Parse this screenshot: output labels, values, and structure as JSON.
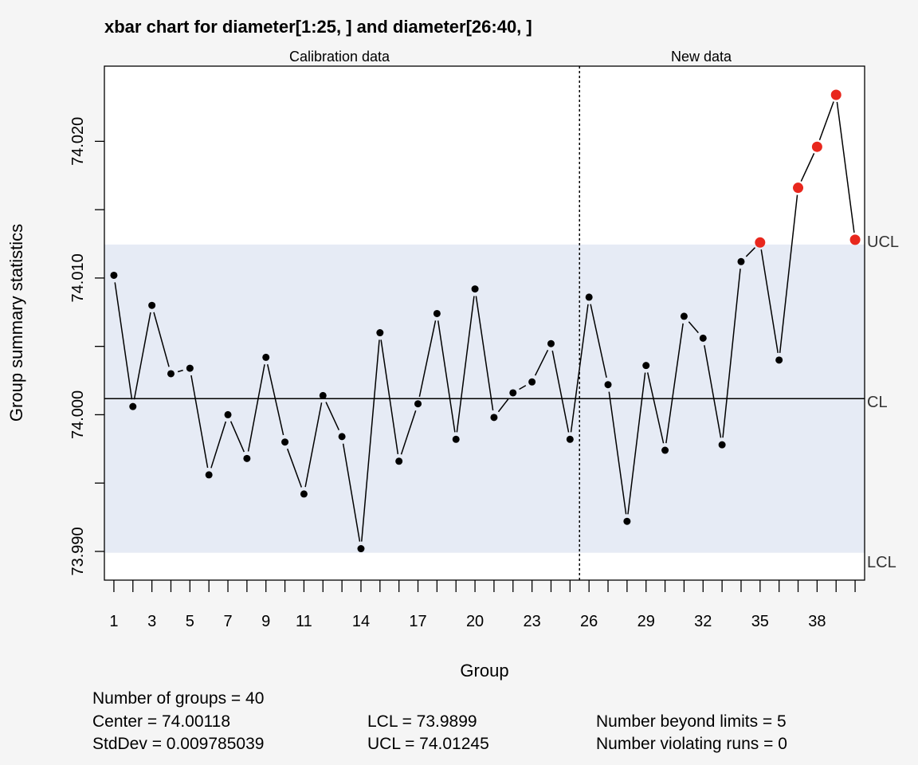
{
  "chart_data": {
    "type": "line",
    "title": "xbar chart for diameter[1:25, ] and diameter[26:40, ]",
    "xlabel": "Group",
    "ylabel": "Group summary statistics",
    "section_labels": [
      "Calibration data",
      "New data"
    ],
    "x": [
      1,
      2,
      3,
      4,
      5,
      6,
      7,
      8,
      9,
      10,
      11,
      12,
      13,
      14,
      15,
      16,
      17,
      18,
      19,
      20,
      21,
      22,
      23,
      24,
      25,
      26,
      27,
      28,
      29,
      30,
      31,
      32,
      33,
      34,
      35,
      36,
      37,
      38,
      39,
      40
    ],
    "values": [
      74.0102,
      74.0006,
      74.008,
      74.003,
      74.0034,
      73.9956,
      74.0,
      73.9968,
      74.0042,
      73.998,
      73.9942,
      74.0014,
      73.9984,
      73.9902,
      74.006,
      73.9966,
      74.0008,
      74.0074,
      73.9982,
      74.0092,
      73.9998,
      74.0016,
      74.0024,
      74.0052,
      73.9982,
      74.0086,
      74.0022,
      73.9922,
      74.0036,
      73.9974,
      74.0072,
      74.0056,
      73.9978,
      74.0112,
      74.0126,
      74.004,
      74.0166,
      74.0196,
      74.0234,
      74.0128
    ],
    "beyond_limits": [
      35,
      37,
      38,
      39,
      40
    ],
    "center": 74.00118,
    "lcl": 73.9899,
    "ucl": 74.01245,
    "line_labels": {
      "ucl": "UCL",
      "cl": "CL",
      "lcl": "LCL"
    },
    "ylim": [
      73.9879,
      74.0255
    ],
    "xlim": [
      0.5,
      40.5
    ],
    "yticks": [
      73.99,
      73.995,
      74.0,
      74.005,
      74.01,
      74.015,
      74.02
    ],
    "ytick_labels": [
      "73.990",
      "",
      "74.000",
      "",
      "74.010",
      "",
      "74.020"
    ],
    "xticks": [
      1,
      2,
      3,
      4,
      5,
      6,
      7,
      8,
      9,
      10,
      11,
      12,
      13,
      14,
      15,
      16,
      17,
      18,
      19,
      20,
      21,
      22,
      23,
      24,
      25,
      26,
      27,
      28,
      29,
      30,
      31,
      32,
      33,
      34,
      35,
      36,
      37,
      38,
      39,
      40
    ],
    "xtick_labels": [
      "1",
      "",
      "3",
      "",
      "5",
      "",
      "7",
      "",
      "9",
      "",
      "11",
      "",
      "",
      "14",
      "",
      "",
      "17",
      "",
      "",
      "20",
      "",
      "",
      "23",
      "",
      "",
      "26",
      "",
      "",
      "29",
      "",
      "",
      "32",
      "",
      "",
      "35",
      "",
      "",
      "38",
      "",
      ""
    ],
    "split_after_group": 25,
    "colors": {
      "band": "#e6ebf5",
      "point": "#000000",
      "violation": "#e8271d",
      "background": "#f5f5f5",
      "plot_bg": "#ffffff"
    },
    "grid": false
  },
  "stats": {
    "groups": "Number of groups = 40",
    "center": "Center = 74.00118",
    "stddev": "StdDev = 0.009785039",
    "lcl": "LCL = 73.9899",
    "ucl": "UCL = 74.01245",
    "beyond": "Number beyond limits = 5",
    "runs": "Number violating runs = 0"
  }
}
